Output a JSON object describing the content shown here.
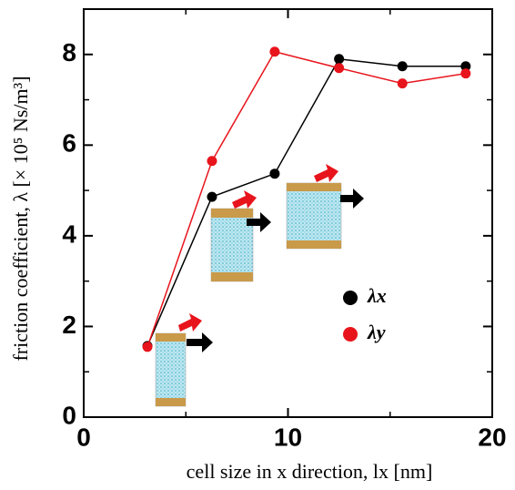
{
  "chart_data": {
    "type": "line",
    "x_label": "cell size in x direction, lx [nm]",
    "y_label": "friction coefficient, λ [× 10⁵ Ns/m³]",
    "xlim": [
      0,
      20
    ],
    "xticks": [
      0,
      10,
      20
    ],
    "ylim": [
      0,
      9
    ],
    "yticks": [
      0,
      2,
      4,
      6,
      8
    ],
    "x": [
      3.12,
      6.28,
      9.35,
      12.5,
      15.6,
      18.7
    ],
    "series": [
      {
        "name": "λx",
        "color": "#000000",
        "values": [
          1.57,
          4.86,
          5.37,
          7.9,
          7.74,
          7.74
        ]
      },
      {
        "name": "λy",
        "color": "#e8141c",
        "values": [
          1.55,
          5.65,
          8.06,
          7.7,
          7.36,
          7.58
        ]
      }
    ]
  }
}
